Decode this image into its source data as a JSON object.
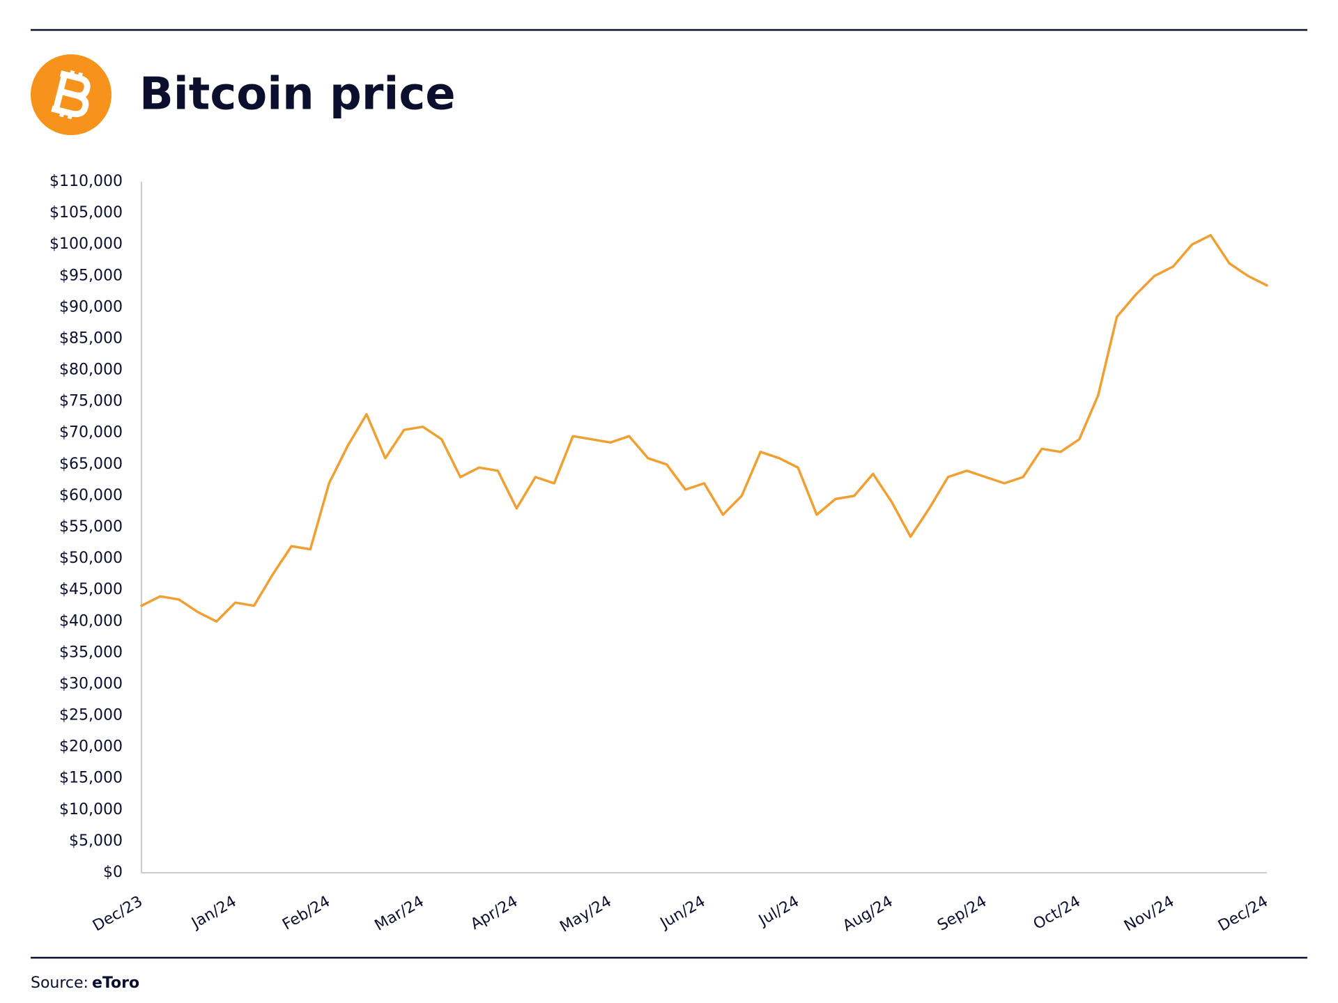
{
  "chart_data": {
    "type": "line",
    "title": "Bitcoin price",
    "source": {
      "label": "Source:",
      "name": "eToro"
    },
    "color": "#f0a033",
    "categories": [
      "Dec/23",
      null,
      null,
      null,
      null,
      "Jan/24",
      null,
      null,
      null,
      null,
      "Feb/24",
      null,
      null,
      null,
      null,
      "Mar/24",
      null,
      null,
      null,
      null,
      "Apr/24",
      null,
      null,
      null,
      null,
      "May/24",
      null,
      null,
      null,
      null,
      "Jun/24",
      null,
      null,
      null,
      null,
      "Jul/24",
      null,
      null,
      null,
      null,
      "Aug/24",
      null,
      null,
      null,
      null,
      "Sep/24",
      null,
      null,
      null,
      null,
      "Oct/24",
      null,
      null,
      null,
      null,
      "Nov/24",
      null,
      null,
      null,
      null,
      "Dec/24"
    ],
    "values": [
      42500,
      44000,
      43500,
      41500,
      40000,
      43000,
      42500,
      47500,
      52000,
      51500,
      62000,
      68000,
      73000,
      66000,
      70500,
      71000,
      69000,
      63000,
      64500,
      64000,
      58000,
      63000,
      62000,
      69500,
      69000,
      68500,
      69500,
      66000,
      65000,
      61000,
      62000,
      57000,
      60000,
      67000,
      66000,
      64500,
      57000,
      59500,
      60000,
      63500,
      59000,
      53500,
      58000,
      63000,
      64000,
      63000,
      62000,
      63000,
      67500,
      67000,
      69000,
      76000,
      88500,
      92000,
      95000,
      96500,
      100000,
      101500,
      97000,
      95000,
      93500
    ],
    "ylim": [
      0,
      110000
    ],
    "yticks": [
      {
        "value": 0,
        "label": "$0"
      },
      {
        "value": 5000,
        "label": "$5,000"
      },
      {
        "value": 10000,
        "label": "$10,000"
      },
      {
        "value": 15000,
        "label": "$15,000"
      },
      {
        "value": 20000,
        "label": "$20,000"
      },
      {
        "value": 25000,
        "label": "$25,000"
      },
      {
        "value": 30000,
        "label": "$30,000"
      },
      {
        "value": 35000,
        "label": "$35,000"
      },
      {
        "value": 40000,
        "label": "$40,000"
      },
      {
        "value": 45000,
        "label": "$45,000"
      },
      {
        "value": 50000,
        "label": "$50,000"
      },
      {
        "value": 55000,
        "label": "$55,000"
      },
      {
        "value": 60000,
        "label": "$60,000"
      },
      {
        "value": 65000,
        "label": "$65,000"
      },
      {
        "value": 70000,
        "label": "$70,000"
      },
      {
        "value": 75000,
        "label": "$75,000"
      },
      {
        "value": 80000,
        "label": "$80,000"
      },
      {
        "value": 85000,
        "label": "$85,000"
      },
      {
        "value": 90000,
        "label": "$90,000"
      },
      {
        "value": 95000,
        "label": "$95,000"
      },
      {
        "value": 100000,
        "label": "$100,000"
      },
      {
        "value": 105000,
        "label": "$105,000"
      },
      {
        "value": 110000,
        "label": "$110,000"
      }
    ],
    "grid": false
  }
}
